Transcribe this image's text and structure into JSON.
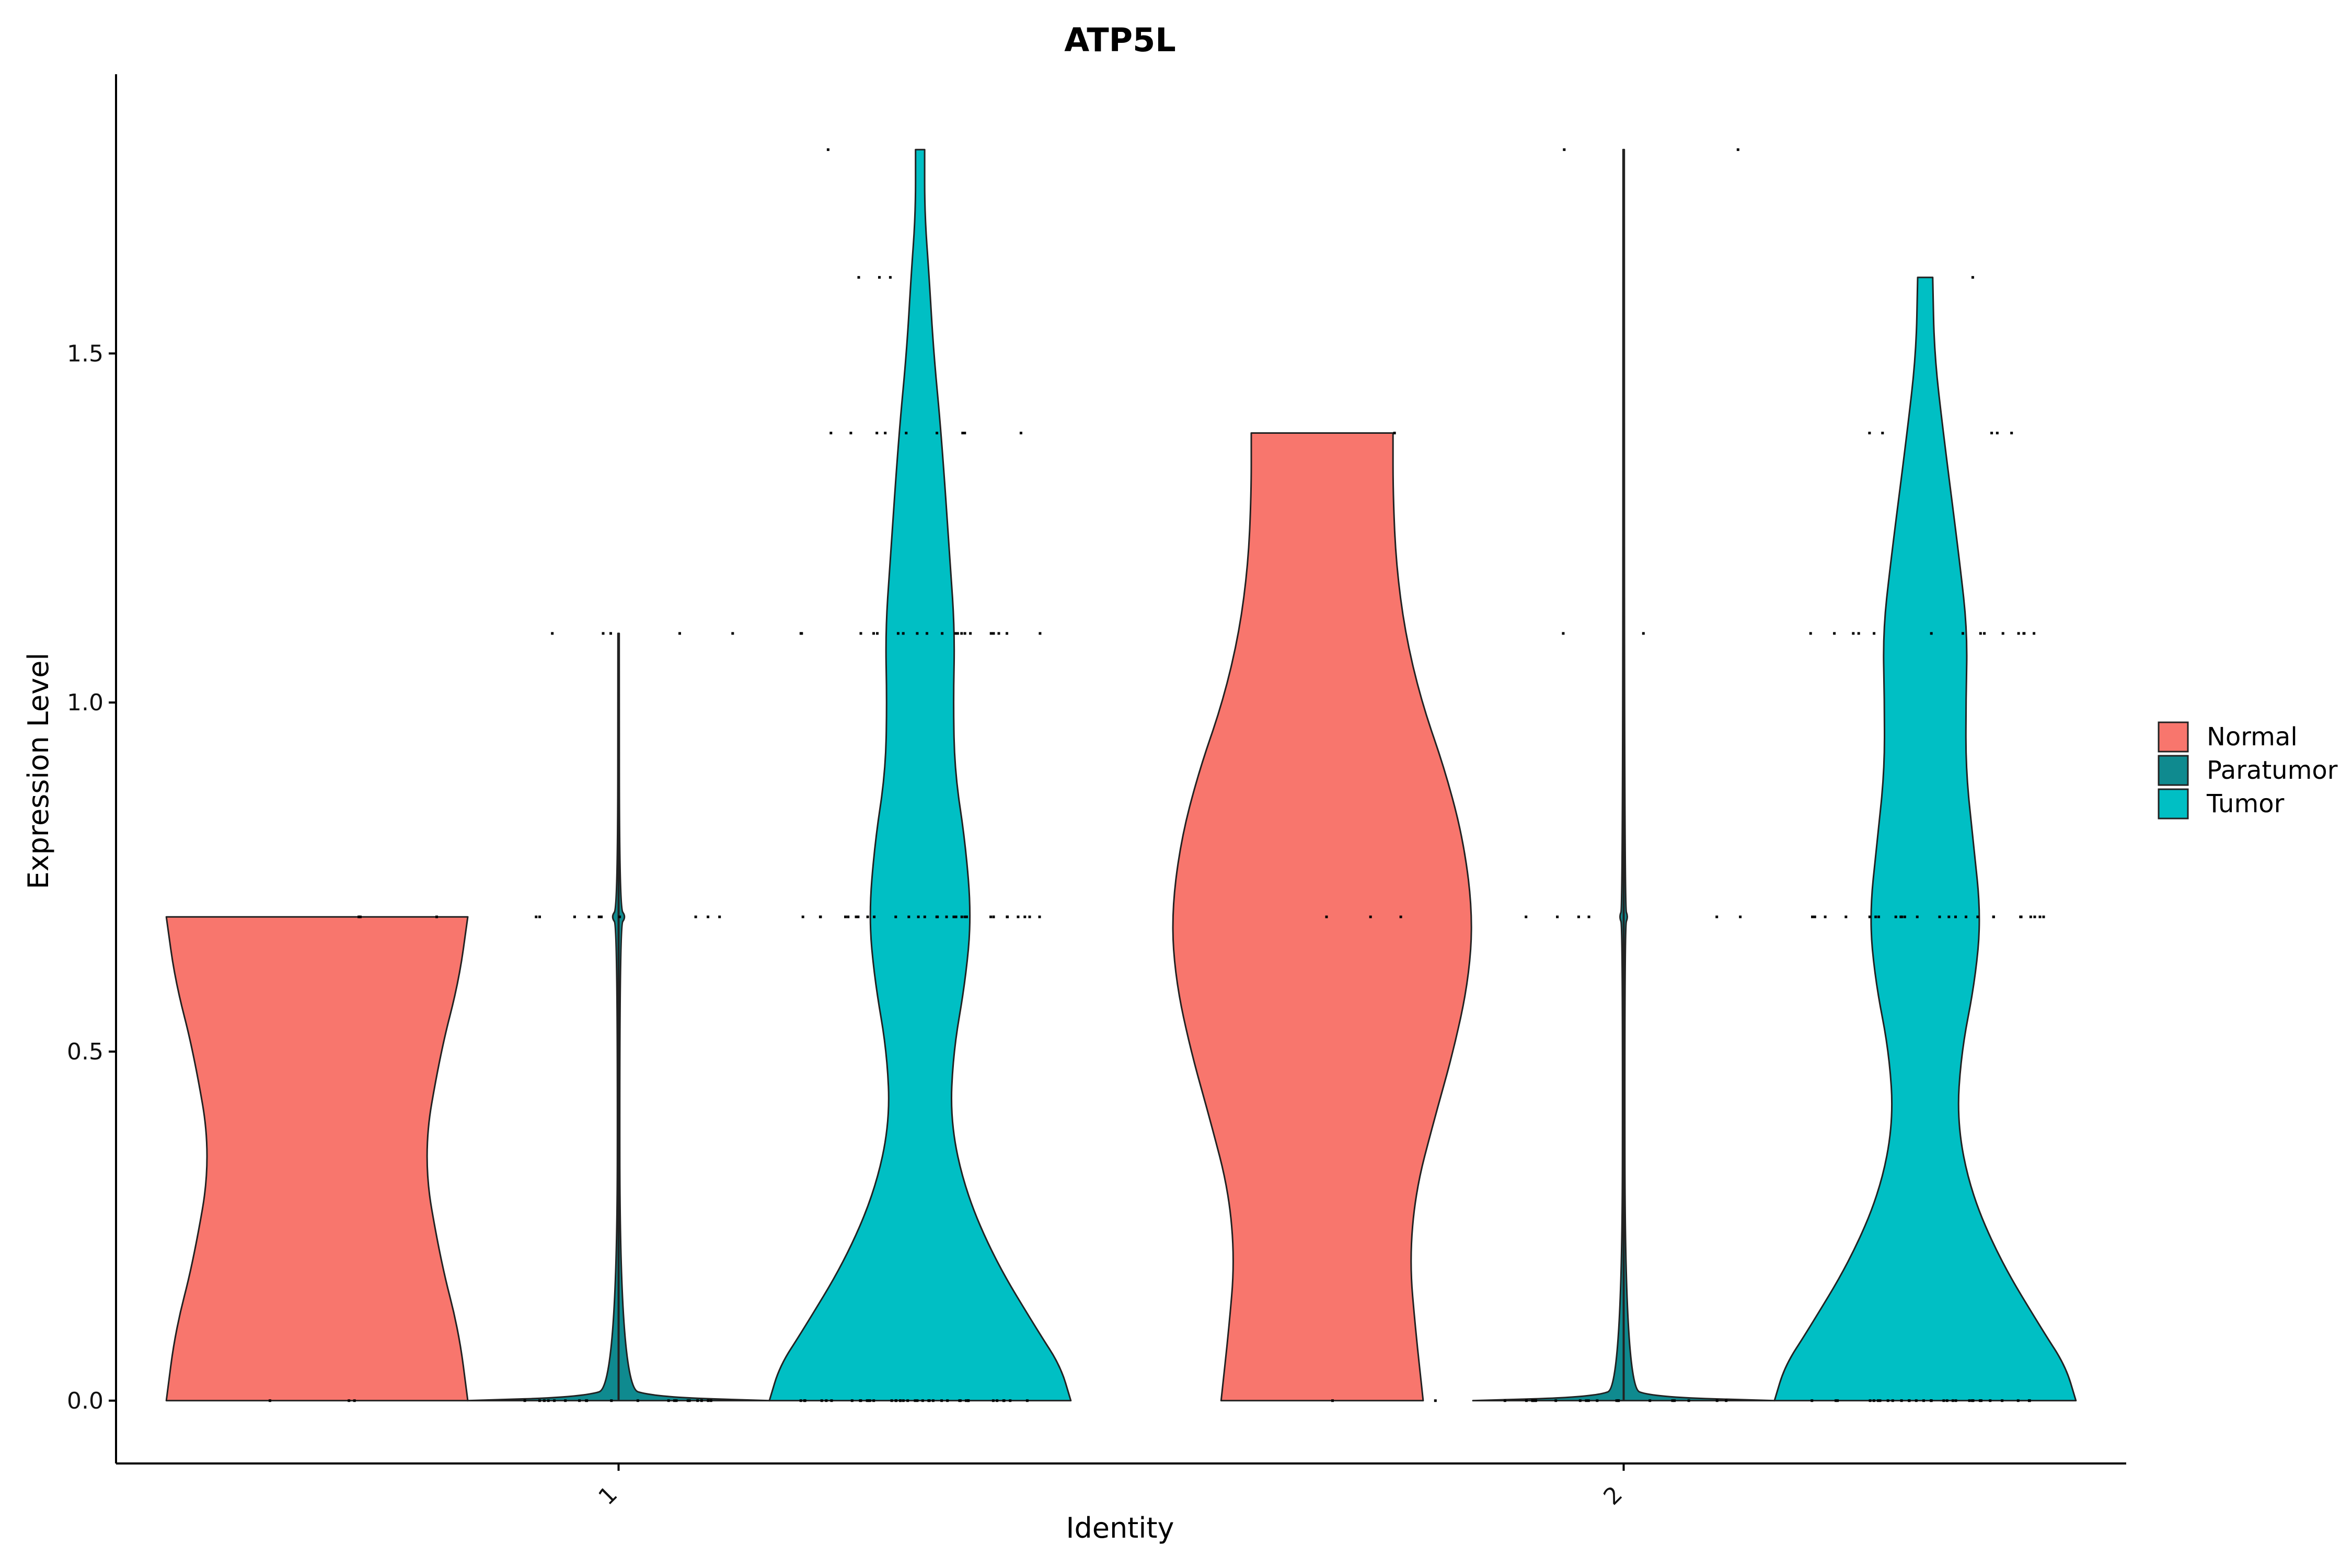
{
  "chart_data": {
    "type": "violin",
    "title": "ATP5L",
    "xlabel": "Identity",
    "ylabel": "Expression Level",
    "ylim": [
      -0.09,
      1.9
    ],
    "yticks": [
      0.0,
      0.5,
      1.0,
      1.5
    ],
    "ytick_labels": [
      "0.0",
      "0.5",
      "1.0",
      "1.5"
    ],
    "categories": [
      "1",
      "2"
    ],
    "legend_position": "right",
    "series": [
      {
        "name": "Normal",
        "color": "#F8766D"
      },
      {
        "name": "Paratumor",
        "color": "#0F8A8F"
      },
      {
        "name": "Tumor",
        "color": "#00BFC4"
      }
    ],
    "violins": [
      {
        "category": "1",
        "group": "Normal",
        "ymin": 0.0,
        "ymax": 0.693,
        "profile": [
          [
            0.0,
            1.0
          ],
          [
            0.1,
            0.94
          ],
          [
            0.2,
            0.82
          ],
          [
            0.35,
            0.7
          ],
          [
            0.5,
            0.82
          ],
          [
            0.6,
            0.94
          ],
          [
            0.693,
            1.0
          ]
        ],
        "points": [
          0.0,
          0.0,
          0.0,
          0.693,
          0.693,
          0.693
        ]
      },
      {
        "category": "1",
        "group": "Paratumor",
        "ymin": 0.0,
        "ymax": 1.099,
        "profile": [
          [
            0.0,
            1.0
          ],
          [
            0.005,
            0.25
          ],
          [
            0.02,
            0.01
          ],
          [
            0.68,
            0.006
          ],
          [
            0.693,
            0.05
          ],
          [
            0.706,
            0.006
          ],
          [
            1.099,
            0.004
          ]
        ],
        "points": [
          0.0,
          0.0,
          0.0,
          0.0,
          0.0,
          0.0,
          0.0,
          0.0,
          0.0,
          0.0,
          0.0,
          0.0,
          0.0,
          0.0,
          0.0,
          0.0,
          0.0,
          0.0,
          0.0,
          0.0,
          0.693,
          0.693,
          0.693,
          0.693,
          0.693,
          0.693,
          0.693,
          0.693,
          0.693,
          0.693,
          1.099,
          1.099,
          1.099,
          1.099,
          1.099
        ]
      },
      {
        "category": "1",
        "group": "Tumor",
        "ymin": 0.0,
        "ymax": 1.792,
        "profile": [
          [
            0.0,
            1.0
          ],
          [
            0.05,
            0.93
          ],
          [
            0.1,
            0.78
          ],
          [
            0.2,
            0.5
          ],
          [
            0.3,
            0.3
          ],
          [
            0.4,
            0.2
          ],
          [
            0.5,
            0.22
          ],
          [
            0.6,
            0.3
          ],
          [
            0.693,
            0.34
          ],
          [
            0.8,
            0.3
          ],
          [
            0.9,
            0.23
          ],
          [
            1.0,
            0.22
          ],
          [
            1.1,
            0.23
          ],
          [
            1.2,
            0.2
          ],
          [
            1.386,
            0.14
          ],
          [
            1.5,
            0.09
          ],
          [
            1.61,
            0.06
          ],
          [
            1.7,
            0.03
          ],
          [
            1.792,
            0.03
          ]
        ],
        "points": [
          0.0,
          0.0,
          0.0,
          0.0,
          0.0,
          0.0,
          0.0,
          0.0,
          0.0,
          0.0,
          0.0,
          0.0,
          0.0,
          0.0,
          0.0,
          0.0,
          0.0,
          0.0,
          0.0,
          0.0,
          0.0,
          0.0,
          0.0,
          0.0,
          0.0,
          0.0,
          0.0,
          0.0,
          0.0,
          0.0,
          0.0,
          0.0,
          0.0,
          0.0,
          0.0,
          0.0,
          0.0,
          0.0,
          0.0,
          0.0,
          0.693,
          0.693,
          0.693,
          0.693,
          0.693,
          0.693,
          0.693,
          0.693,
          0.693,
          0.693,
          0.693,
          0.693,
          0.693,
          0.693,
          0.693,
          0.693,
          0.693,
          0.693,
          0.693,
          0.693,
          0.693,
          0.693,
          0.693,
          0.693,
          0.693,
          0.693,
          0.693,
          0.693,
          0.693,
          0.693,
          1.099,
          1.099,
          1.099,
          1.099,
          1.099,
          1.099,
          1.099,
          1.099,
          1.099,
          1.099,
          1.099,
          1.099,
          1.099,
          1.099,
          1.099,
          1.099,
          1.099,
          1.099,
          1.099,
          1.099,
          1.386,
          1.386,
          1.386,
          1.386,
          1.386,
          1.386,
          1.386,
          1.386,
          1.386,
          1.386,
          1.609,
          1.609,
          1.609,
          1.792
        ]
      },
      {
        "category": "2",
        "group": "Normal",
        "ymin": 0.0,
        "ymax": 1.386,
        "profile": [
          [
            0.0,
            0.67
          ],
          [
            0.1,
            0.62
          ],
          [
            0.2,
            0.58
          ],
          [
            0.3,
            0.62
          ],
          [
            0.4,
            0.74
          ],
          [
            0.5,
            0.87
          ],
          [
            0.6,
            0.97
          ],
          [
            0.693,
            1.0
          ],
          [
            0.8,
            0.94
          ],
          [
            0.9,
            0.82
          ],
          [
            1.0,
            0.66
          ],
          [
            1.1,
            0.55
          ],
          [
            1.2,
            0.49
          ],
          [
            1.3,
            0.47
          ],
          [
            1.386,
            0.47
          ]
        ],
        "points": [
          0.0,
          0.0,
          0.693,
          0.693,
          0.693,
          1.386
        ]
      },
      {
        "category": "2",
        "group": "Paratumor",
        "ymin": 0.0,
        "ymax": 1.792,
        "profile": [
          [
            0.0,
            1.0
          ],
          [
            0.005,
            0.2
          ],
          [
            0.02,
            0.01
          ],
          [
            0.68,
            0.006
          ],
          [
            0.693,
            0.03
          ],
          [
            0.706,
            0.006
          ],
          [
            1.792,
            0.004
          ]
        ],
        "points": [
          0.0,
          0.0,
          0.0,
          0.0,
          0.0,
          0.0,
          0.0,
          0.0,
          0.0,
          0.0,
          0.0,
          0.0,
          0.0,
          0.0,
          0.0,
          0.0,
          0.0,
          0.0,
          0.0,
          0.0,
          0.693,
          0.693,
          0.693,
          0.693,
          0.693,
          0.693,
          1.099,
          1.099,
          1.792,
          1.792
        ]
      },
      {
        "category": "2",
        "group": "Tumor",
        "ymin": 0.0,
        "ymax": 1.609,
        "profile": [
          [
            0.0,
            1.0
          ],
          [
            0.05,
            0.93
          ],
          [
            0.1,
            0.78
          ],
          [
            0.2,
            0.5
          ],
          [
            0.3,
            0.3
          ],
          [
            0.4,
            0.21
          ],
          [
            0.5,
            0.24
          ],
          [
            0.6,
            0.33
          ],
          [
            0.693,
            0.37
          ],
          [
            0.8,
            0.32
          ],
          [
            0.9,
            0.27
          ],
          [
            1.0,
            0.27
          ],
          [
            1.1,
            0.28
          ],
          [
            1.2,
            0.23
          ],
          [
            1.386,
            0.12
          ],
          [
            1.5,
            0.06
          ],
          [
            1.609,
            0.05
          ]
        ],
        "points": [
          0.0,
          0.0,
          0.0,
          0.0,
          0.0,
          0.0,
          0.0,
          0.0,
          0.0,
          0.0,
          0.0,
          0.0,
          0.0,
          0.0,
          0.0,
          0.0,
          0.0,
          0.0,
          0.0,
          0.0,
          0.0,
          0.0,
          0.0,
          0.0,
          0.0,
          0.0,
          0.0,
          0.0,
          0.0,
          0.0,
          0.693,
          0.693,
          0.693,
          0.693,
          0.693,
          0.693,
          0.693,
          0.693,
          0.693,
          0.693,
          0.693,
          0.693,
          0.693,
          0.693,
          0.693,
          0.693,
          0.693,
          0.693,
          0.693,
          0.693,
          0.693,
          0.693,
          0.693,
          0.693,
          0.693,
          1.099,
          1.099,
          1.099,
          1.099,
          1.099,
          1.099,
          1.099,
          1.099,
          1.099,
          1.099,
          1.099,
          1.099,
          1.099,
          1.099,
          1.386,
          1.386,
          1.386,
          1.386,
          1.386,
          1.609
        ]
      }
    ]
  }
}
